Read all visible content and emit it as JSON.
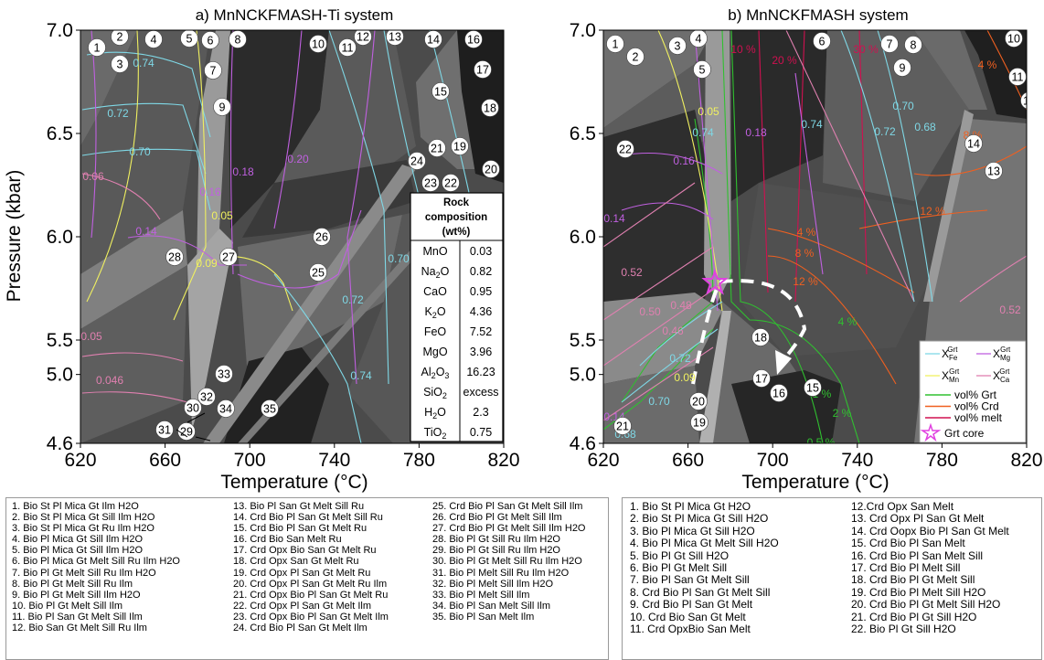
{
  "panel_a": {
    "title": "a) MnNCKFMASH-Ti system",
    "x_ticks": [
      "620",
      "660",
      "700",
      "740",
      "780",
      "820"
    ],
    "y_ticks": [
      "7.0",
      "6.5",
      "6.0",
      "5.5",
      "5.0",
      "4.6"
    ],
    "field_numbers": [
      "1",
      "2",
      "3",
      "4",
      "5",
      "6",
      "7",
      "8",
      "9",
      "10",
      "11",
      "12",
      "13",
      "14",
      "15",
      "16",
      "17",
      "18",
      "19",
      "20",
      "21",
      "22",
      "23",
      "24",
      "25",
      "26",
      "27",
      "28",
      "29",
      "30",
      "31",
      "32",
      "33",
      "34",
      "35"
    ],
    "iso_labels": [
      "0.74",
      "0.72",
      "0.70",
      "0.06",
      "0.14",
      "0.05",
      "0.046",
      "0.18",
      "0.16",
      "0.20",
      "0.05",
      "0.09",
      "0.70",
      "0.72",
      "0.74"
    ],
    "composition": {
      "title_lines": [
        "Rock",
        "composition",
        "(wt%)"
      ],
      "rows": [
        {
          "oxide": "MnO",
          "value": "0.03"
        },
        {
          "oxide": "Na2O",
          "value": "0.82"
        },
        {
          "oxide": "CaO",
          "value": "0.95"
        },
        {
          "oxide": "K2O",
          "value": "4.36"
        },
        {
          "oxide": "FeO",
          "value": "7.52"
        },
        {
          "oxide": "MgO",
          "value": "3.96"
        },
        {
          "oxide": "Al2O3",
          "value": "16.23"
        },
        {
          "oxide": "SiO2",
          "value": "excess"
        },
        {
          "oxide": "H2O",
          "value": "2.3"
        },
        {
          "oxide": "TiO2",
          "value": "0.75"
        }
      ]
    }
  },
  "panel_b": {
    "title": "b) MnNCKFMASH system",
    "x_ticks": [
      "620",
      "660",
      "700",
      "740",
      "780",
      "820"
    ],
    "y_ticks": [
      "7.0",
      "6.5",
      "6.0",
      "5.5",
      "5.0",
      "4.6"
    ],
    "field_numbers": [
      "1",
      "2",
      "3",
      "4",
      "5",
      "6",
      "7",
      "8",
      "9",
      "10",
      "11",
      "12",
      "13",
      "14",
      "15",
      "16",
      "17",
      "18",
      "19",
      "20",
      "21",
      "22"
    ],
    "iso_labels": [
      "10 %",
      "20 %",
      "30 %",
      "4 %",
      "8 %",
      "12 %",
      "4 %",
      "8 %",
      "12 %",
      "0.05",
      "0.74",
      "0.18",
      "0.74",
      "0.72",
      "0.70",
      "0.68",
      "0.16",
      "0.14",
      "0.52",
      "0.48",
      "0.50",
      "0.46",
      "0.52",
      "0.72",
      "0.09",
      "0.70",
      "0.14",
      "0.68",
      "4 %",
      "1 %",
      "2 %",
      "0.5 %"
    ],
    "legend": {
      "items": [
        "X Fe Grt",
        "X Mg Grt",
        "X Mn Grt",
        "X Ca Grt",
        "vol% Grt",
        "vol% Crd",
        "vol% melt",
        "Grt core"
      ],
      "colors": [
        "#7fd8e6",
        "#c060e0",
        "#f0f060",
        "#e080b0",
        "#30c030",
        "#f06020",
        "#d01050",
        "#e040e0"
      ]
    }
  },
  "x_axis_label": "Temperature (°C)",
  "y_axis_label": "Pressure (kbar)",
  "legend_a": [
    [
      "1. Bio St Pl Mica Gt Ilm H2O",
      "2. Bio St Pl Mica Gt Sill Ilm H2O",
      "3. Bio St Pl Mica Gt Ru Ilm H2O",
      "4. Bio Pl Mica Gt Sill Ilm H2O",
      "5. Bio Pl Mica Gt Sill Ilm H2O",
      "6. Bio Pl Mica Gt Melt Sill Ru Ilm H2O",
      "7. Bio Pl Gt Melt Sill Ru Ilm H2O",
      "8. Bio Pl Gt Melt Sill Ru Ilm",
      "9. Bio Pl Gt Melt Sill Ilm H2O",
      "10. Bio Pl Gt Melt Sill Ilm",
      "11. Bio Pl San Gt Melt Sill Ilm",
      "12. Bio San Gt Melt Sill Ru Ilm"
    ],
    [
      "13. Bio Pl San Gt Melt Sill Ru",
      "14. Crd Bio Pl San Gt Melt Sill Ru",
      "15. Crd Bio Pl San Gt Melt Ru",
      "16. Crd Bio San Melt Ru",
      "17. Crd Opx Bio San Gt Melt Ru",
      "18. Crd Opx San Gt Melt Ru",
      "19. Crd Opx Pl San Gt Melt Ru",
      "20. Crd Opx Pl San Gt Melt Ru Ilm",
      "21. Crd Opx Bio Pl San Gt Melt Ru",
      "22. Crd Opx Pl San Gt Melt Ilm",
      "23. Crd Opx Bio Pl San Gt Melt Ilm",
      "24. Crd Bio Pl San Gt Melt Ilm"
    ],
    [
      "25. Crd Bio Pl San Gt Melt Sill Ilm",
      "26. Crd Bio Pl Gt Melt Sill Ilm",
      "27. Crd Bio Pl Gt Melt Sill Ilm H2O",
      "28. Bio Pl Gt Sill Ru Ilm H2O",
      "29. Bio Pl Gt Sill Ru Ilm H2O",
      "30. Bio Pl Gt Melt Sill Ru Ilm H2O",
      "31. Bio Pl Melt Sill Ru Ilm H2O",
      "32. Bio Pl Melt Sill Ilm H2O",
      "33. Bio Pl Melt Sill Ilm",
      "34. Bio Pl San Melt Sill Ilm",
      "35. Bio Pl San Melt Ilm"
    ]
  ],
  "legend_b": [
    [
      "1. Bio St Pl Mica Gt H2O",
      "2. Bio St Pl Mica Gt Sill H2O",
      "3. Bio Pl Mica Gt Sill H2O",
      "4. Bio Pl Mica Gt Melt Sill H2O",
      "5. Bio Pl Gt Sill H2O",
      "6. Bio Pl Gt Melt Sill",
      "7. Bio Pl San Gt Melt Sill",
      "8. Crd Bio Pl San Gt Melt Sill",
      "9. Crd Bio Pl San Gt Melt",
      "10. Crd Bio San Gt Melt",
      "11. Crd OpxBio San Melt"
    ],
    [
      "12.Crd Opx San Melt",
      "13. Crd Opx Pl San Gt Melt",
      "14. Crd Oopx Bio Pl San Gt Melt",
      "15. Crd Bio Pl San Melt",
      "16. Crd Bio Pl San Melt Sill",
      "17. Crd Bio Pl Melt Sill",
      "18. Crd Bio Pl Gt Melt Sill",
      "19. Crd Bio Pl Melt Sill H2O",
      "20. Crd Bio Pl Gt Melt Sill H2O",
      "21. Crd Bio Pl Gt Sill H2O",
      "22. Bio Pl Gt Sill H2O"
    ]
  ]
}
